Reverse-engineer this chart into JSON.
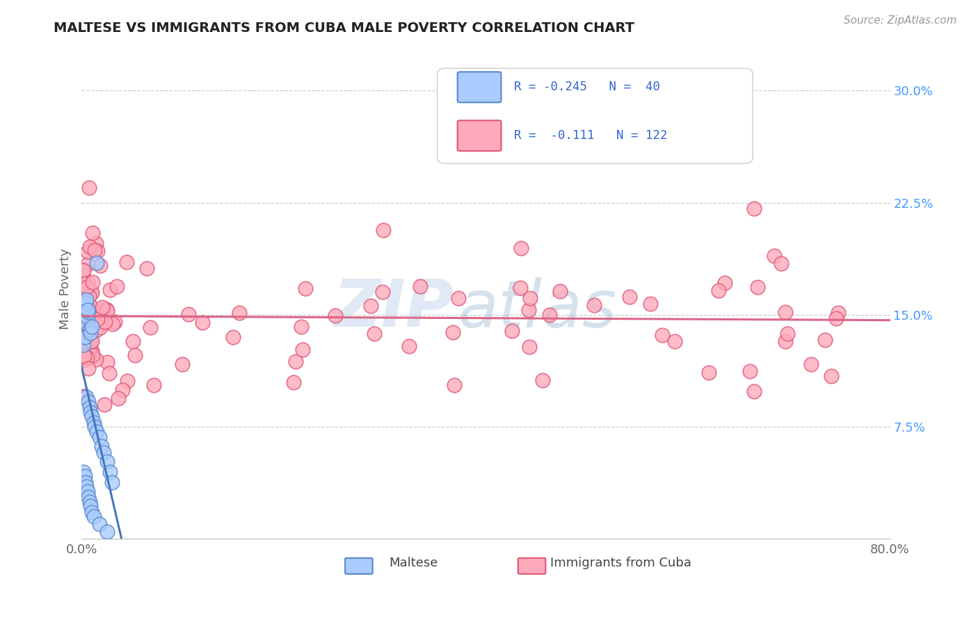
{
  "title": "MALTESE VS IMMIGRANTS FROM CUBA MALE POVERTY CORRELATION CHART",
  "source": "Source: ZipAtlas.com",
  "ylabel": "Male Poverty",
  "xlim": [
    0.0,
    0.8
  ],
  "ylim": [
    0.0,
    0.335
  ],
  "xticks": [
    0.0,
    0.1,
    0.2,
    0.3,
    0.4,
    0.5,
    0.6,
    0.7,
    0.8
  ],
  "xticklabels": [
    "0.0%",
    "",
    "",
    "",
    "",
    "",
    "",
    "",
    "80.0%"
  ],
  "yticks_right": [
    0.0,
    0.075,
    0.15,
    0.225,
    0.3
  ],
  "yticklabels_right": [
    "",
    "7.5%",
    "15.0%",
    "22.5%",
    "30.0%"
  ],
  "legend_maltese_label": "Maltese",
  "legend_cuba_label": "Immigrants from Cuba",
  "maltese_color": "#aaccff",
  "maltese_edge_color": "#5588cc",
  "cuba_color": "#ffaabb",
  "cuba_edge_color": "#dd5577",
  "malta_line_color": "#4477bb",
  "cuba_line_color": "#dd6688",
  "watermark_zip": "ZIP",
  "watermark_atlas": "atlas",
  "background_color": "#ffffff"
}
